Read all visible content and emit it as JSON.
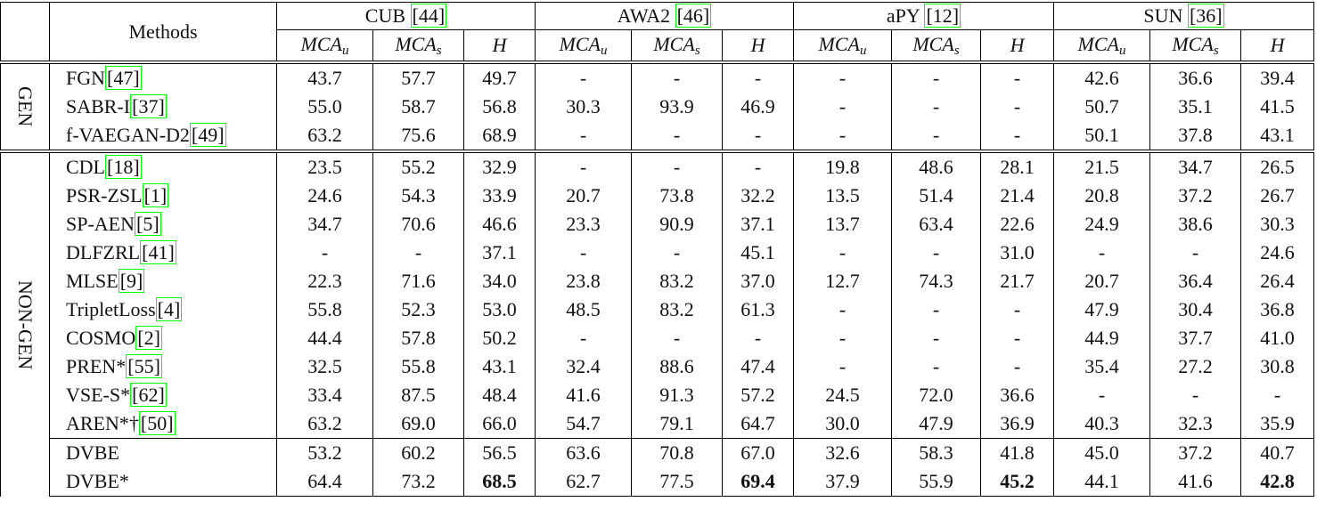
{
  "header": {
    "methods": "Methods",
    "groups": [
      {
        "label": "CUB",
        "cite": "[44]"
      },
      {
        "label": "AWA2",
        "cite": "[46]"
      },
      {
        "label": "aPY",
        "cite": "[12]"
      },
      {
        "label": "SUN",
        "cite": "[36]"
      }
    ],
    "subcolumns": [
      {
        "text": "MCA",
        "sub": "u"
      },
      {
        "text": "MCA",
        "sub": "s"
      },
      {
        "text": "H"
      },
      {
        "text": "MCA",
        "sub": "u"
      },
      {
        "text": "MCA",
        "sub": "s"
      },
      {
        "text": "H"
      },
      {
        "text": "MCA",
        "sub": "u"
      },
      {
        "text": "MCA",
        "sub": "s"
      },
      {
        "text": "H"
      },
      {
        "text": "MCA",
        "sub": "u"
      },
      {
        "text": "MCA",
        "sub": "s"
      },
      {
        "text": "H"
      }
    ]
  },
  "sections": [
    {
      "label": "GEN",
      "rows": [
        {
          "method": "FGN",
          "cite": "[47]",
          "values": [
            "43.7",
            "57.7",
            "49.7",
            "-",
            "-",
            "-",
            "-",
            "-",
            "-",
            "42.6",
            "36.6",
            "39.4"
          ]
        },
        {
          "method": "SABR-I",
          "cite": "[37]",
          "values": [
            "55.0",
            "58.7",
            "56.8",
            "30.3",
            "93.9",
            "46.9",
            "-",
            "-",
            "-",
            "50.7",
            "35.1",
            "41.5"
          ]
        },
        {
          "method": "f-VAEGAN-D2",
          "cite": "[49]",
          "values": [
            "63.2",
            "75.6",
            "68.9",
            "-",
            "-",
            "-",
            "-",
            "-",
            "-",
            "50.1",
            "37.8",
            "43.1"
          ]
        }
      ]
    },
    {
      "label": "NON-GEN",
      "rows": [
        {
          "method": "CDL",
          "cite": "[18]",
          "values": [
            "23.5",
            "55.2",
            "32.9",
            "-",
            "-",
            "-",
            "19.8",
            "48.6",
            "28.1",
            "21.5",
            "34.7",
            "26.5"
          ]
        },
        {
          "method": "PSR-ZSL",
          "cite": "[1]",
          "values": [
            "24.6",
            "54.3",
            "33.9",
            "20.7",
            "73.8",
            "32.2",
            "13.5",
            "51.4",
            "21.4",
            "20.8",
            "37.2",
            "26.7"
          ]
        },
        {
          "method": "SP-AEN",
          "cite": "[5]",
          "values": [
            "34.7",
            "70.6",
            "46.6",
            "23.3",
            "90.9",
            "37.1",
            "13.7",
            "63.4",
            "22.6",
            "24.9",
            "38.6",
            "30.3"
          ]
        },
        {
          "method": "DLFZRL",
          "cite": "[41]",
          "values": [
            "-",
            "-",
            "37.1",
            "-",
            "-",
            "45.1",
            "-",
            "-",
            "31.0",
            "-",
            "-",
            "24.6"
          ]
        },
        {
          "method": "MLSE",
          "cite": "[9]",
          "values": [
            "22.3",
            "71.6",
            "34.0",
            "23.8",
            "83.2",
            "37.0",
            "12.7",
            "74.3",
            "21.7",
            "20.7",
            "36.4",
            "26.4"
          ]
        },
        {
          "method": "TripletLoss",
          "cite": "[4]",
          "values": [
            "55.8",
            "52.3",
            "53.0",
            "48.5",
            "83.2",
            "61.3",
            "-",
            "-",
            "-",
            "47.9",
            "30.4",
            "36.8"
          ]
        },
        {
          "method": "COSMO",
          "cite": "[2]",
          "values": [
            "44.4",
            "57.8",
            "50.2",
            "-",
            "-",
            "-",
            "-",
            "-",
            "-",
            "44.9",
            "37.7",
            "41.0"
          ]
        },
        {
          "method": "PREN*",
          "cite": "[55]",
          "values": [
            "32.5",
            "55.8",
            "43.1",
            "32.4",
            "88.6",
            "47.4",
            "-",
            "-",
            "-",
            "35.4",
            "27.2",
            "30.8"
          ]
        },
        {
          "method": "VSE-S*",
          "cite": "[62]",
          "values": [
            "33.4",
            "87.5",
            "48.4",
            "41.6",
            "91.3",
            "57.2",
            "24.5",
            "72.0",
            "36.6",
            "-",
            "-",
            "-"
          ]
        },
        {
          "method": "AREN*†",
          "cite": "[50]",
          "values": [
            "63.2",
            "69.0",
            "66.0",
            "54.7",
            "79.1",
            "64.7",
            "30.0",
            "47.9",
            "36.9",
            "40.3",
            "32.3",
            "35.9"
          ]
        },
        {
          "method": "DVBE",
          "rule_before": true,
          "values": [
            "53.2",
            "60.2",
            "56.5",
            "63.6",
            "70.8",
            "67.0",
            "32.6",
            "58.3",
            "41.8",
            "45.0",
            "37.2",
            "40.7"
          ]
        },
        {
          "method": "DVBE*",
          "bold": [
            2,
            5,
            8,
            11
          ],
          "values": [
            "64.4",
            "73.2",
            "68.5",
            "62.7",
            "77.5",
            "69.4",
            "37.9",
            "55.9",
            "45.2",
            "44.1",
            "41.6",
            "42.8"
          ]
        }
      ]
    }
  ]
}
